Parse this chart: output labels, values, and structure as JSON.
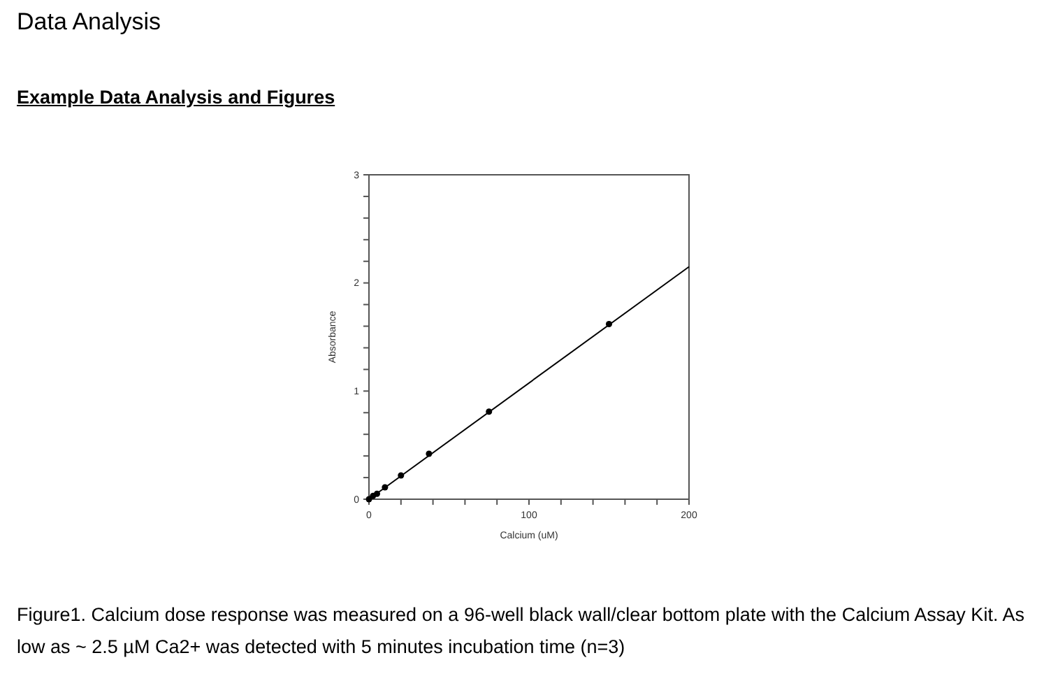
{
  "chart_data": {
    "type": "scatter",
    "title": "Data Analysis",
    "subtitle": "Example Data Analysis and Figures",
    "xlabel": "Calcium (uM)",
    "ylabel": "Absorbance",
    "annotations": [
      "Figure1. Calcium dose response was measured on a 96-well black wall/clear bottom plate with the Calcium Assay Kit. As low as ~ 2.5 µM Ca2+ was detected with 5 minutes incubation time (n=3)"
    ],
    "series": [
      {
        "color": "#000000",
        "marker": "circle",
        "x": [
          0,
          2.5,
          5,
          10,
          20,
          37.5,
          75,
          150
        ],
        "values": [
          0,
          0.03,
          0.05,
          0.11,
          0.22,
          0.42,
          0.81,
          1.62
        ]
      },
      {
        "type": "line",
        "color": "#000000",
        "x": [
          0,
          200
        ],
        "values": [
          0,
          2.15
        ]
      }
    ],
    "xlim": [
      0,
      200
    ],
    "ylim": [
      0,
      3
    ],
    "xticks": [
      0,
      {
        "value": 20,
        "label": null
      },
      {
        "value": 40,
        "label": null
      },
      {
        "value": 60,
        "label": null
      },
      {
        "value": 80,
        "label": null
      },
      100,
      {
        "value": 120,
        "label": null
      },
      {
        "value": 140,
        "label": null
      },
      {
        "value": 160,
        "label": null
      },
      {
        "value": 180,
        "label": null
      },
      200
    ],
    "yticks": [
      0,
      {
        "value": 0.2,
        "label": null
      },
      {
        "value": 0.4,
        "label": null
      },
      {
        "value": 0.6,
        "label": null
      },
      {
        "value": 0.8,
        "label": null
      },
      1,
      {
        "value": 1.2,
        "label": null
      },
      {
        "value": 1.4,
        "label": null
      },
      {
        "value": 1.6,
        "label": null
      },
      {
        "value": 1.8,
        "label": null
      },
      2,
      {
        "value": 2.2,
        "label": null
      },
      {
        "value": 2.4,
        "label": null
      },
      {
        "value": 2.6,
        "label": null
      },
      {
        "value": 2.8,
        "label": null
      },
      3
    ],
    "grid": false
  }
}
